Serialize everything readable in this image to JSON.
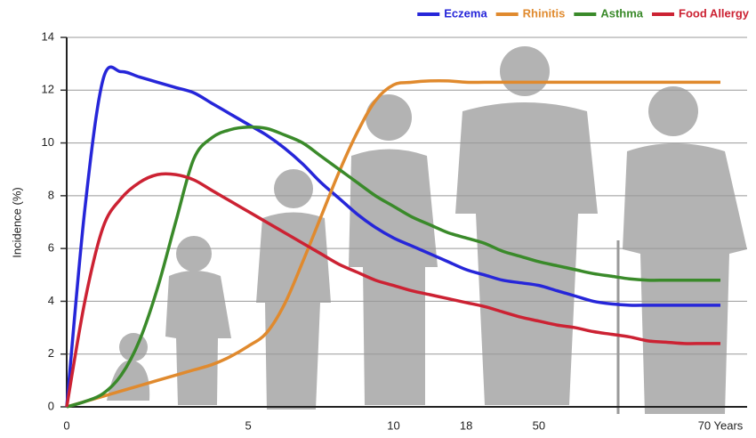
{
  "chart_data": {
    "type": "line",
    "y_label": "Incidence (%)",
    "categories": [
      "0",
      null,
      null,
      null,
      null,
      null,
      null,
      null,
      null,
      null,
      "5",
      null,
      null,
      null,
      null,
      null,
      null,
      null,
      "10",
      null,
      null,
      null,
      "18",
      null,
      null,
      null,
      "50",
      null,
      null,
      null,
      null,
      null,
      null,
      null,
      null,
      null,
      "70 Years"
    ],
    "series": [
      {
        "name": "Eczema",
        "color": "#2626d9",
        "values": [
          0,
          7.5,
          12.4,
          12.7,
          12.5,
          12.3,
          12.1,
          11.9,
          11.5,
          11.1,
          10.7,
          10.3,
          9.8,
          9.2,
          8.5,
          7.9,
          7.3,
          6.8,
          6.4,
          6.1,
          5.8,
          5.5,
          5.2,
          5.0,
          4.8,
          4.7,
          4.6,
          4.4,
          4.2,
          4.0,
          3.9,
          3.85,
          3.85,
          3.85,
          3.85,
          3.85,
          3.85
        ]
      },
      {
        "name": "Rhinitis",
        "color": "#e08a2e",
        "values": [
          0,
          0.2,
          0.4,
          0.6,
          0.8,
          1.0,
          1.2,
          1.4,
          1.6,
          1.9,
          2.3,
          2.8,
          3.9,
          5.5,
          7.2,
          8.9,
          10.4,
          11.6,
          12.2,
          12.3,
          12.35,
          12.35,
          12.3,
          12.3,
          12.3,
          12.3,
          12.3,
          12.3,
          12.3,
          12.3,
          12.3,
          12.3,
          12.3,
          12.3,
          12.3,
          12.3,
          12.3
        ]
      },
      {
        "name": "Asthma",
        "color": "#3a8a2a",
        "values": [
          0,
          0.2,
          0.5,
          1.2,
          2.5,
          4.5,
          7.0,
          9.4,
          10.2,
          10.5,
          10.6,
          10.55,
          10.3,
          10.0,
          9.5,
          9.0,
          8.5,
          8.0,
          7.6,
          7.2,
          6.9,
          6.6,
          6.4,
          6.2,
          5.9,
          5.7,
          5.5,
          5.35,
          5.2,
          5.05,
          4.95,
          4.85,
          4.8,
          4.8,
          4.8,
          4.8,
          4.8
        ]
      },
      {
        "name": "Food Allergy",
        "color": "#cc2233",
        "values": [
          0,
          4.0,
          6.8,
          7.9,
          8.5,
          8.8,
          8.8,
          8.6,
          8.2,
          7.8,
          7.4,
          7.0,
          6.6,
          6.2,
          5.8,
          5.4,
          5.1,
          4.8,
          4.6,
          4.4,
          4.25,
          4.1,
          3.95,
          3.8,
          3.6,
          3.4,
          3.25,
          3.1,
          3.0,
          2.85,
          2.75,
          2.65,
          2.5,
          2.45,
          2.4,
          2.4,
          2.4
        ]
      }
    ],
    "ylim": [
      0,
      14
    ],
    "yticks": [
      0,
      2,
      4,
      6,
      8,
      10,
      12,
      14
    ],
    "grid": true,
    "legend": "top-right"
  }
}
